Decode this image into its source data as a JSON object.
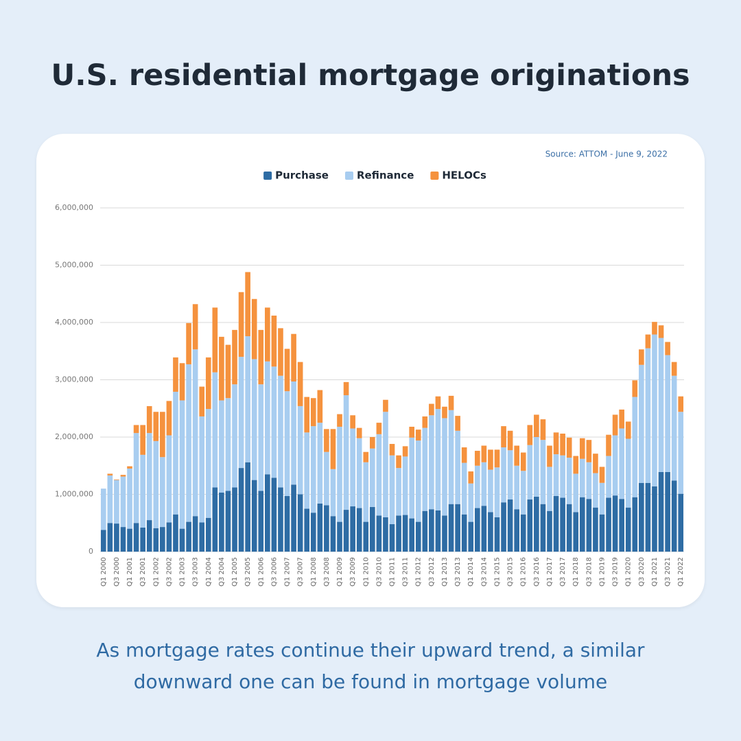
{
  "title": "U.S. residential mortgage originations",
  "caption": "As mortgage rates continue their upward trend, a similar downward one can be found in mortgage volume",
  "chart_data": {
    "type": "stacked_bar",
    "source": "Source: ATTOM - June 9, 2022",
    "categories": [
      "Q1 2000",
      null,
      "Q3 2000",
      null,
      "Q1 2001",
      null,
      "Q3 2001",
      null,
      "Q1 2002",
      null,
      "Q3 2002",
      null,
      "Q1 2003",
      null,
      "Q3 2003",
      null,
      "Q1 2004",
      null,
      "Q3 2004",
      null,
      "Q1 2005",
      null,
      "Q3 2005",
      null,
      "Q1 2006",
      null,
      "Q3 2006",
      null,
      "Q1 2007",
      null,
      "Q3 2007",
      null,
      "Q1 2008",
      null,
      "Q3 2008",
      null,
      "Q1 2009",
      null,
      "Q3 2009",
      null,
      "Q1 2010",
      null,
      "Q3 2010",
      null,
      "Q1 2011",
      null,
      "Q3 2011",
      null,
      "Q1 2012",
      null,
      "Q3 2012",
      null,
      "Q1 2013",
      null,
      "Q3 2013",
      null,
      "Q1 2014",
      null,
      "Q3 2014",
      null,
      "Q1 2015",
      null,
      "Q3 2015",
      null,
      "Q1 2016",
      null,
      "Q3 2016",
      null,
      "Q1 2017",
      null,
      "Q3 2017",
      null,
      "Q1 2018",
      null,
      "Q3 2018",
      null,
      "Q1 2019",
      null,
      "Q3 2019",
      null,
      "Q1 2020",
      null,
      "Q3 2020",
      null,
      "Q1 2021",
      null,
      "Q3 2021",
      null,
      "Q1 2022"
    ],
    "series": [
      {
        "name": "Purchase",
        "color": "#2e6ca4",
        "values": [
          380000,
          500000,
          490000,
          430000,
          400000,
          500000,
          420000,
          550000,
          410000,
          430000,
          510000,
          650000,
          400000,
          520000,
          620000,
          510000,
          590000,
          1120000,
          1030000,
          1060000,
          1120000,
          1460000,
          1560000,
          1250000,
          1060000,
          1350000,
          1290000,
          1120000,
          970000,
          1170000,
          1000000,
          750000,
          680000,
          840000,
          810000,
          620000,
          520000,
          730000,
          790000,
          760000,
          520000,
          780000,
          630000,
          600000,
          480000,
          630000,
          640000,
          580000,
          520000,
          710000,
          740000,
          720000,
          630000,
          830000,
          830000,
          650000,
          520000,
          760000,
          800000,
          690000,
          600000,
          860000,
          910000,
          740000,
          650000,
          910000,
          960000,
          830000,
          710000,
          970000,
          940000,
          830000,
          690000,
          950000,
          920000,
          770000,
          650000,
          940000,
          980000,
          920000,
          770000,
          950000,
          1200000,
          1200000,
          1140000,
          1390000,
          1390000,
          1240000,
          1010000
        ]
      },
      {
        "name": "Refinance",
        "color": "#a8cdf0",
        "values": [
          720000,
          830000,
          760000,
          880000,
          1050000,
          1570000,
          1270000,
          1520000,
          1520000,
          1220000,
          1520000,
          2140000,
          2240000,
          2750000,
          2910000,
          1850000,
          1900000,
          2010000,
          1610000,
          1620000,
          1800000,
          1940000,
          2200000,
          2110000,
          1860000,
          1970000,
          1940000,
          1950000,
          1830000,
          1800000,
          1540000,
          1330000,
          1510000,
          1410000,
          930000,
          820000,
          1660000,
          2000000,
          1360000,
          1220000,
          1040000,
          1020000,
          1420000,
          1840000,
          1200000,
          830000,
          1020000,
          1410000,
          1420000,
          1450000,
          1640000,
          1770000,
          1700000,
          1640000,
          1280000,
          900000,
          670000,
          740000,
          760000,
          740000,
          870000,
          960000,
          860000,
          760000,
          760000,
          950000,
          1040000,
          1120000,
          770000,
          730000,
          740000,
          810000,
          670000,
          670000,
          640000,
          600000,
          550000,
          730000,
          1050000,
          1230000,
          1200000,
          1750000,
          2060000,
          2350000,
          2650000,
          2340000,
          2040000,
          1830000,
          1430000
        ]
      },
      {
        "name": "HELOCs",
        "color": "#f5923e",
        "values": [
          0,
          30000,
          10000,
          30000,
          40000,
          140000,
          520000,
          470000,
          510000,
          790000,
          600000,
          600000,
          650000,
          720000,
          790000,
          520000,
          900000,
          1130000,
          1110000,
          930000,
          950000,
          1130000,
          1120000,
          1050000,
          950000,
          940000,
          890000,
          830000,
          740000,
          830000,
          770000,
          620000,
          490000,
          570000,
          400000,
          700000,
          220000,
          230000,
          230000,
          180000,
          180000,
          200000,
          200000,
          210000,
          200000,
          220000,
          180000,
          190000,
          190000,
          200000,
          200000,
          220000,
          200000,
          250000,
          260000,
          270000,
          210000,
          260000,
          290000,
          350000,
          310000,
          370000,
          340000,
          350000,
          320000,
          350000,
          390000,
          360000,
          370000,
          380000,
          380000,
          350000,
          310000,
          360000,
          390000,
          340000,
          280000,
          370000,
          360000,
          330000,
          300000,
          290000,
          270000,
          240000,
          220000,
          220000,
          230000,
          240000,
          270000
        ]
      }
    ],
    "ylim": [
      0,
      6000000
    ],
    "yticks": [
      0,
      {
        "value": 1000000,
        "label": "1,000,000"
      },
      {
        "value": 2000000,
        "label": "2,000,000"
      },
      {
        "value": 3000000,
        "label": "3,000,000"
      },
      {
        "value": 4000000,
        "label": "4,000,000"
      },
      {
        "value": 5000000,
        "label": "5,000,000"
      },
      {
        "value": 6000000,
        "label": "6,000,000"
      }
    ],
    "grid": true,
    "legend": "top"
  }
}
